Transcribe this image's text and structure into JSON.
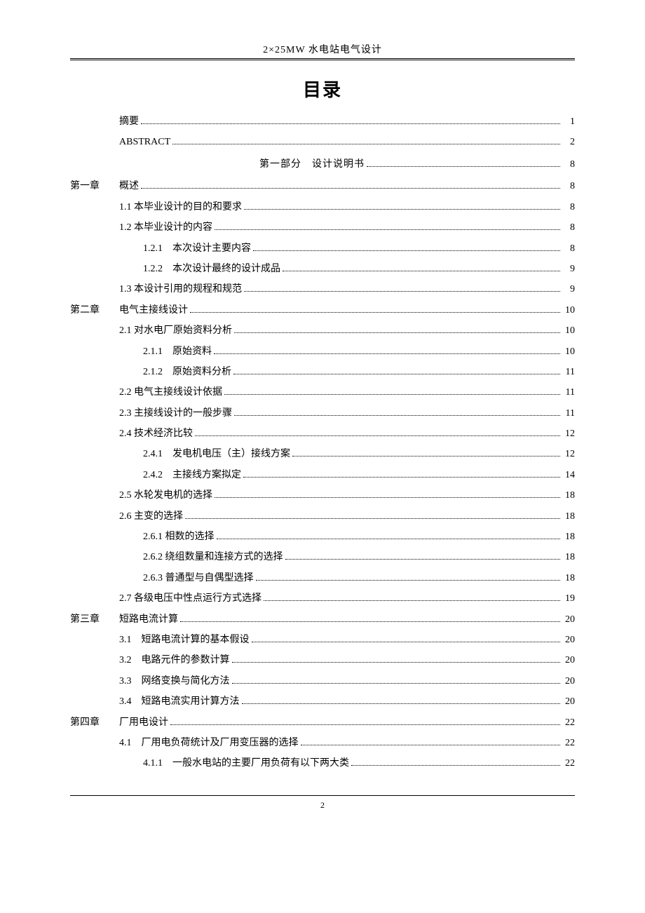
{
  "header": {
    "title": "2×25MW 水电站电气设计"
  },
  "title": "目录",
  "toc": [
    {
      "type": "entry",
      "indent": 0,
      "chapterLabel": "",
      "text": "摘要",
      "page": "1"
    },
    {
      "type": "entry",
      "indent": 0,
      "chapterLabel": "",
      "text": "ABSTRACT",
      "page": "2"
    },
    {
      "type": "part",
      "text": "第一部分　设计说明书",
      "page": "8"
    },
    {
      "type": "entry",
      "indent": 0,
      "chapterLabel": "第一章",
      "text": "概述",
      "page": "8"
    },
    {
      "type": "entry",
      "indent": 1,
      "chapterLabel": "",
      "text": "1.1  本毕业设计的目的和要求",
      "page": "8"
    },
    {
      "type": "entry",
      "indent": 1,
      "chapterLabel": "",
      "text": "1.2  本毕业设计的内容",
      "page": "8"
    },
    {
      "type": "entry",
      "indent": 2,
      "chapterLabel": "",
      "text": "1.2.1　本次设计主要内容",
      "page": "8"
    },
    {
      "type": "entry",
      "indent": 2,
      "chapterLabel": "",
      "text": "1.2.2　本次设计最终的设计成品",
      "page": "9"
    },
    {
      "type": "entry",
      "indent": 1,
      "chapterLabel": "",
      "text": "1.3  本设计引用的规程和规范",
      "page": "9"
    },
    {
      "type": "entry",
      "indent": 0,
      "chapterLabel": "第二章",
      "text": "电气主接线设计",
      "page": "10"
    },
    {
      "type": "entry",
      "indent": 1,
      "chapterLabel": "",
      "text": "2.1  对水电厂原始资料分析",
      "page": "10"
    },
    {
      "type": "entry",
      "indent": 2,
      "chapterLabel": "",
      "text": "2.1.1　原始资料",
      "page": "10"
    },
    {
      "type": "entry",
      "indent": 2,
      "chapterLabel": "",
      "text": "2.1.2　原始资料分析",
      "page": "11"
    },
    {
      "type": "entry",
      "indent": 1,
      "chapterLabel": "",
      "text": "2.2  电气主接线设计依据",
      "page": "11"
    },
    {
      "type": "entry",
      "indent": 1,
      "chapterLabel": "",
      "text": "2.3  主接线设计的一般步骤",
      "page": "11"
    },
    {
      "type": "entry",
      "indent": 1,
      "chapterLabel": "",
      "text": "2.4  技术经济比较",
      "page": "12"
    },
    {
      "type": "entry",
      "indent": 2,
      "chapterLabel": "",
      "text": "2.4.1　发电机电压（主）接线方案",
      "page": "12"
    },
    {
      "type": "entry",
      "indent": 2,
      "chapterLabel": "",
      "text": "2.4.2　主接线方案拟定",
      "page": "14"
    },
    {
      "type": "entry",
      "indent": 1,
      "chapterLabel": "",
      "text": "2.5  水轮发电机的选择",
      "page": "18"
    },
    {
      "type": "entry",
      "indent": 1,
      "chapterLabel": "",
      "text": "2.6  主变的选择",
      "page": "18"
    },
    {
      "type": "entry",
      "indent": 2,
      "chapterLabel": "",
      "text": "2.6.1 相数的选择",
      "page": "18"
    },
    {
      "type": "entry",
      "indent": 2,
      "chapterLabel": "",
      "text": "2.6.2 绕组数量和连接方式的选择",
      "page": "18"
    },
    {
      "type": "entry",
      "indent": 2,
      "chapterLabel": "",
      "text": "2.6.3 普通型与自偶型选择",
      "page": "18"
    },
    {
      "type": "entry",
      "indent": 1,
      "chapterLabel": "",
      "text": "2.7  各级电压中性点运行方式选择",
      "page": "19"
    },
    {
      "type": "entry",
      "indent": 0,
      "chapterLabel": "第三章",
      "text": "短路电流计算",
      "page": "20"
    },
    {
      "type": "entry",
      "indent": 1,
      "chapterLabel": "",
      "text": "3.1　短路电流计算的基本假设",
      "page": "20"
    },
    {
      "type": "entry",
      "indent": 1,
      "chapterLabel": "",
      "text": "3.2　电路元件的参数计算",
      "page": "20"
    },
    {
      "type": "entry",
      "indent": 1,
      "chapterLabel": "",
      "text": "3.3　网络变换与简化方法",
      "page": "20"
    },
    {
      "type": "entry",
      "indent": 1,
      "chapterLabel": "",
      "text": "3.4　短路电流实用计算方法",
      "page": "20"
    },
    {
      "type": "entry",
      "indent": 0,
      "chapterLabel": "第四章",
      "text": "厂用电设计",
      "page": "22"
    },
    {
      "type": "entry",
      "indent": 1,
      "chapterLabel": "",
      "text": "4.1　厂用电负荷统计及厂用变压器的选择",
      "page": "22"
    },
    {
      "type": "entry",
      "indent": 2,
      "chapterLabel": "",
      "text": "4.1.1　一般水电站的主要厂用负荷有以下两大类",
      "page": "22"
    }
  ],
  "footer": {
    "pageNumber": "2"
  },
  "style": {
    "background": "#ffffff",
    "text_color": "#000000",
    "body_fontsize": 14,
    "title_fontsize": 26,
    "line_height": 2.1
  }
}
